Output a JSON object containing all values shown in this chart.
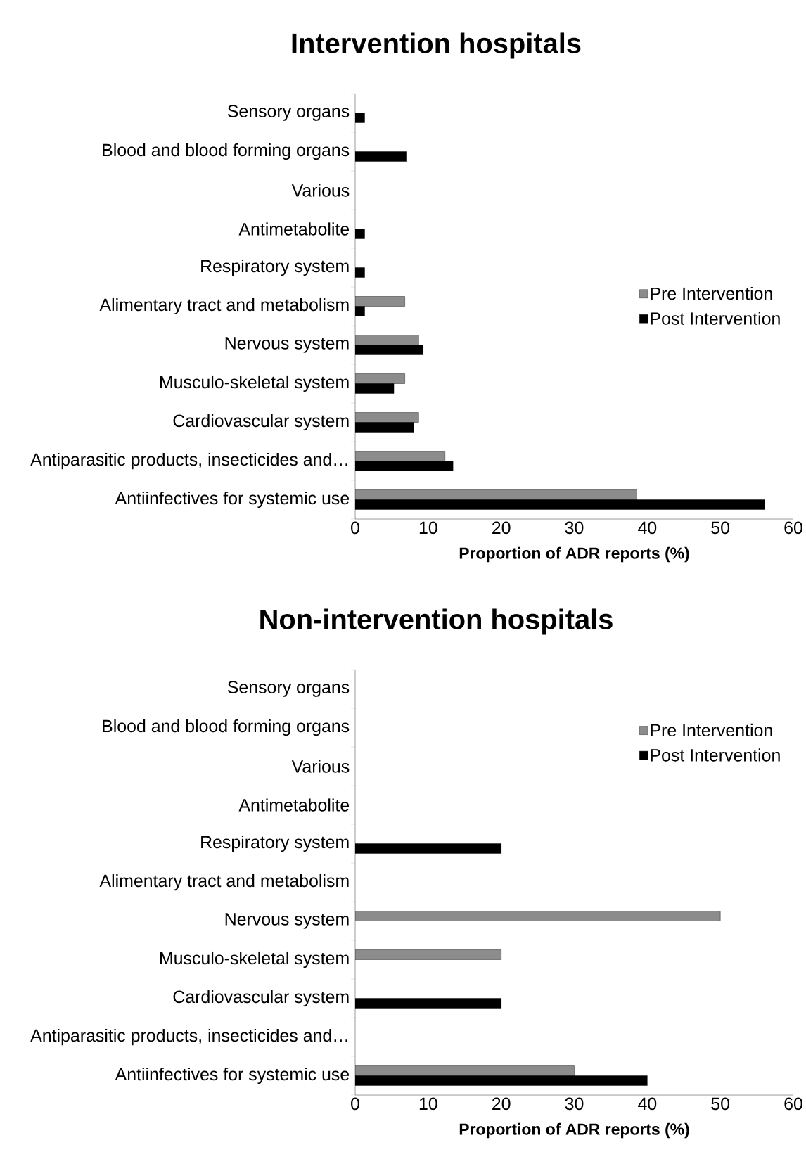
{
  "chart_data": [
    {
      "type": "bar",
      "orientation": "horizontal",
      "title": "Intervention hospitals",
      "xlabel": "Proportion of ADR reports (%)",
      "categories": [
        "Sensory organs",
        "Blood and blood forming organs",
        "Various",
        "Antimetabolite",
        "Respiratory system",
        "Alimentary tract and metabolism",
        "Nervous system",
        "Musculo-skeletal system",
        "Cardiovascular system",
        "Antiparasitic products, insecticides and…",
        "Antiinfectives for systemic use"
      ],
      "series": [
        {
          "name": "Pre Intervention",
          "color": "#8c8c8c",
          "values": [
            null,
            null,
            null,
            null,
            null,
            6.8,
            8.7,
            6.8,
            8.7,
            12.3,
            38.6
          ]
        },
        {
          "name": "Post Intervention",
          "color": "#000000",
          "values": [
            1.3,
            7.0,
            null,
            1.3,
            1.3,
            1.3,
            9.3,
            5.3,
            8.0,
            13.4,
            56.1
          ]
        }
      ],
      "xlim": [
        0,
        60
      ],
      "xticks": [
        0,
        10,
        20,
        30,
        40,
        50,
        60
      ],
      "legend": "right"
    },
    {
      "type": "bar",
      "orientation": "horizontal",
      "title": "Non-intervention hospitals",
      "xlabel": "Proportion of ADR reports (%)",
      "categories": [
        "Sensory organs",
        "Blood and blood forming organs",
        "Various",
        "Antimetabolite",
        "Respiratory system",
        "Alimentary tract and metabolism",
        "Nervous system",
        "Musculo-skeletal system",
        "Cardiovascular system",
        "Antiparasitic products, insecticides and…",
        "Antiinfectives for systemic use"
      ],
      "series": [
        {
          "name": "Pre Intervention",
          "color": "#8c8c8c",
          "values": [
            null,
            null,
            null,
            null,
            null,
            null,
            50,
            20,
            null,
            null,
            30
          ]
        },
        {
          "name": "Post Intervention",
          "color": "#000000",
          "values": [
            null,
            null,
            null,
            null,
            20,
            null,
            null,
            null,
            20,
            null,
            40
          ]
        }
      ],
      "xlim": [
        0,
        60
      ],
      "xticks": [
        0,
        10,
        20,
        30,
        40,
        50,
        60
      ],
      "legend": "top right"
    }
  ]
}
